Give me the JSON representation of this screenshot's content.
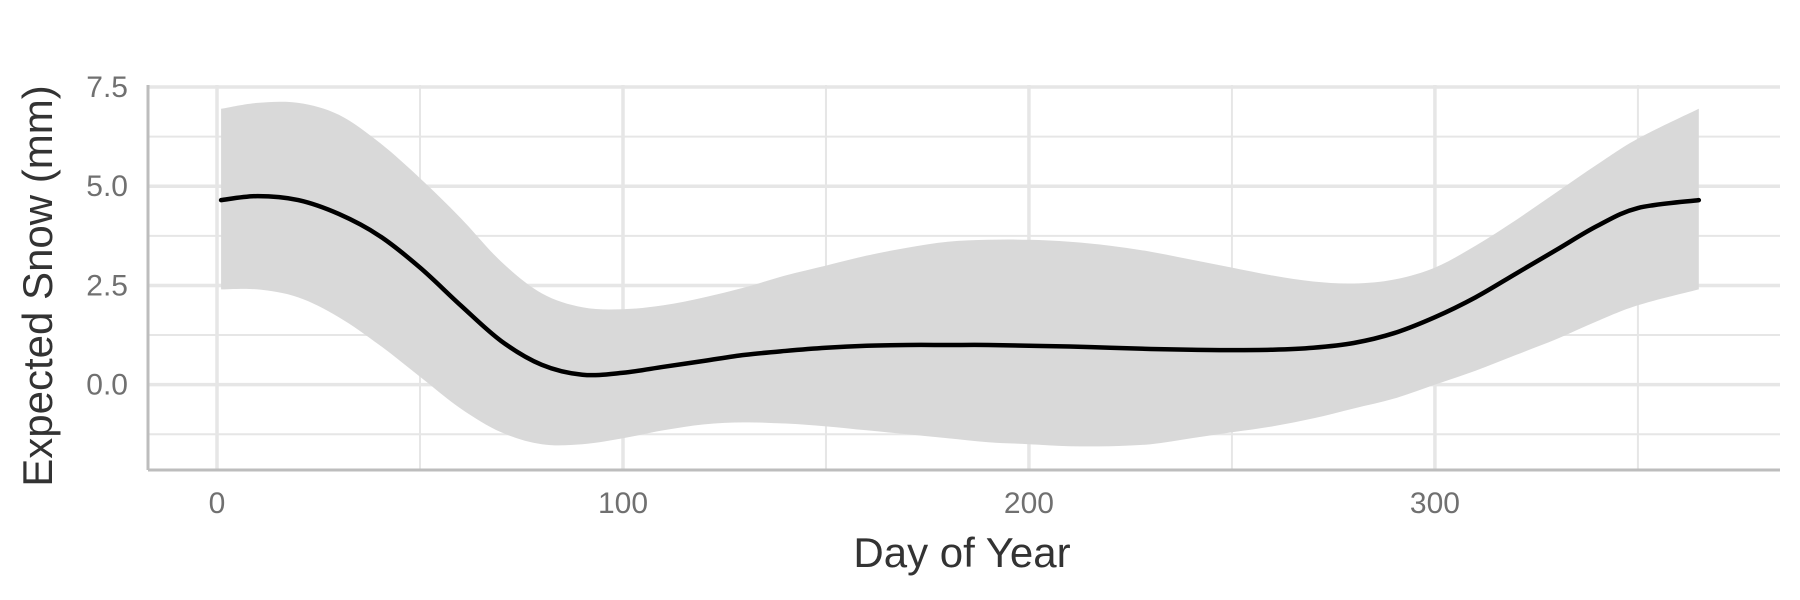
{
  "chart_data": {
    "type": "line",
    "title": "",
    "xlabel": "Day of Year",
    "ylabel": "Expected Snow (mm)",
    "xlim": [
      -17,
      385
    ],
    "ylim": [
      -2.15,
      7.55
    ],
    "xticks": [
      0,
      100,
      200,
      300
    ],
    "xtick_labels": [
      "0",
      "100",
      "200",
      "300"
    ],
    "yticks": [
      0.0,
      2.5,
      5.0,
      7.5
    ],
    "ytick_labels": [
      "0.0",
      "2.5",
      "5.0",
      "7.5"
    ],
    "grid": true,
    "legend": "none",
    "colors": {
      "line": "#000000",
      "band": "#d9d9d9",
      "grid": "#e6e6e6",
      "axis": "#bdbdbd"
    },
    "series": [
      {
        "x": [
          1,
          10,
          20,
          30,
          40,
          50,
          60,
          70,
          80,
          90,
          100,
          110,
          120,
          130,
          140,
          150,
          160,
          170,
          180,
          190,
          200,
          210,
          220,
          230,
          240,
          250,
          260,
          270,
          280,
          290,
          300,
          310,
          320,
          330,
          340,
          350,
          365
        ],
        "y": [
          4.65,
          4.75,
          4.65,
          4.3,
          3.75,
          2.95,
          2.0,
          1.1,
          0.5,
          0.25,
          0.3,
          0.45,
          0.6,
          0.75,
          0.85,
          0.93,
          0.98,
          1.0,
          1.0,
          1.0,
          0.98,
          0.96,
          0.93,
          0.9,
          0.88,
          0.87,
          0.88,
          0.93,
          1.05,
          1.3,
          1.7,
          2.2,
          2.8,
          3.4,
          4.0,
          4.45,
          4.65
        ],
        "lower": [
          2.4,
          2.4,
          2.2,
          1.7,
          1.0,
          0.2,
          -0.6,
          -1.2,
          -1.5,
          -1.5,
          -1.35,
          -1.15,
          -1.0,
          -0.95,
          -0.98,
          -1.05,
          -1.15,
          -1.25,
          -1.35,
          -1.45,
          -1.5,
          -1.55,
          -1.55,
          -1.5,
          -1.35,
          -1.2,
          -1.05,
          -0.85,
          -0.6,
          -0.35,
          0.0,
          0.35,
          0.75,
          1.15,
          1.6,
          2.0,
          2.4
        ],
        "upper": [
          6.95,
          7.1,
          7.1,
          6.8,
          6.1,
          5.2,
          4.2,
          3.1,
          2.3,
          1.95,
          1.9,
          2.0,
          2.2,
          2.45,
          2.75,
          3.0,
          3.25,
          3.45,
          3.6,
          3.65,
          3.65,
          3.6,
          3.5,
          3.35,
          3.15,
          2.95,
          2.75,
          2.6,
          2.55,
          2.65,
          2.95,
          3.5,
          4.15,
          4.85,
          5.55,
          6.2,
          6.95
        ]
      }
    ]
  }
}
